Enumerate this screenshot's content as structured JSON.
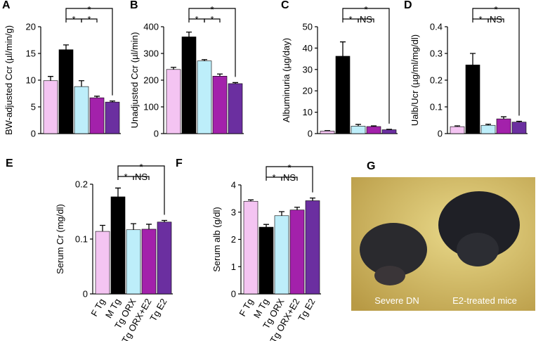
{
  "chart_data": [
    {
      "type": "bar",
      "label": "A",
      "y_label": "BW-adjusted Ccr (µl/min/g)",
      "ylim": [
        0,
        20
      ],
      "yticks": [
        0,
        5,
        10,
        15,
        20
      ],
      "values": [
        9.9,
        15.7,
        8.8,
        6.7,
        5.9
      ],
      "errors": [
        0.8,
        0.9,
        1.1,
        0.3,
        0.2
      ],
      "colors": [
        "#f4c4f2",
        "#000000",
        "#bdeefa",
        "#a321ab",
        "#6b2fa0"
      ],
      "annotations": [
        "*",
        "*",
        "*"
      ]
    },
    {
      "type": "bar",
      "label": "B",
      "y_label": "Unadjusted Ccr (µl/min)",
      "ylim": [
        0,
        400
      ],
      "yticks": [
        0,
        100,
        200,
        300,
        400
      ],
      "values": [
        240,
        362,
        272,
        215,
        187
      ],
      "errors": [
        8,
        18,
        5,
        8,
        4
      ],
      "colors": [
        "#f4c4f2",
        "#000000",
        "#bdeefa",
        "#a321ab",
        "#6b2fa0"
      ],
      "annotations": [
        "*",
        "*",
        "*"
      ]
    },
    {
      "type": "bar",
      "label": "C",
      "y_label": "Albuminuria (µg/day)",
      "ylim": [
        0,
        50
      ],
      "yticks": [
        0,
        10,
        20,
        30,
        40,
        50
      ],
      "values": [
        1.2,
        36.2,
        3.5,
        3.3,
        1.8
      ],
      "errors": [
        0.2,
        6.7,
        0.8,
        0.3,
        0.2
      ],
      "colors": [
        "#f4c4f2",
        "#000000",
        "#bdeefa",
        "#a321ab",
        "#6b2fa0"
      ],
      "annotations": [
        "*",
        "*",
        "NS"
      ]
    },
    {
      "type": "bar",
      "label": "D",
      "y_label": "Ualb/Ucr (µg/ml/mg/dl)",
      "ylim": [
        0,
        0.4
      ],
      "yticks": [
        0,
        0.1,
        0.2,
        0.3,
        0.4
      ],
      "values": [
        0.026,
        0.257,
        0.031,
        0.055,
        0.043
      ],
      "errors": [
        0.003,
        0.043,
        0.004,
        0.008,
        0.003
      ],
      "colors": [
        "#f4c4f2",
        "#000000",
        "#bdeefa",
        "#a321ab",
        "#6b2fa0"
      ],
      "annotations": [
        "*",
        "*",
        "NS"
      ]
    },
    {
      "type": "bar",
      "label": "E",
      "y_label": "Serum Cr (mg/dl)",
      "ylim": [
        0,
        0.2
      ],
      "yticks": [
        0,
        0.1,
        0.2
      ],
      "categories": [
        "F Tg",
        "M Tg",
        "Tg ORX",
        "Tg ORX+E2",
        "Tg E2"
      ],
      "values": [
        0.114,
        0.177,
        0.117,
        0.118,
        0.131
      ],
      "errors": [
        0.011,
        0.016,
        0.011,
        0.009,
        0.003
      ],
      "colors": [
        "#f4c4f2",
        "#000000",
        "#bdeefa",
        "#a321ab",
        "#6b2fa0"
      ],
      "annotations": [
        "*",
        "*",
        "NS"
      ]
    },
    {
      "type": "bar",
      "label": "F",
      "y_label": "Serum alb (g/dl)",
      "ylim": [
        0,
        4
      ],
      "yticks": [
        0,
        1,
        2,
        3,
        4
      ],
      "categories": [
        "F Tg",
        "M Tg",
        "Tg ORX",
        "Tg ORX+E2",
        "Tg E2"
      ],
      "values": [
        3.4,
        2.45,
        2.87,
        3.08,
        3.42
      ],
      "errors": [
        0.05,
        0.1,
        0.15,
        0.1,
        0.1
      ],
      "colors": [
        "#f4c4f2",
        "#000000",
        "#bdeefa",
        "#a321ab",
        "#6b2fa0"
      ],
      "annotations": [
        "*",
        "*",
        "NS"
      ]
    }
  ],
  "photo": {
    "label": "G",
    "captions": [
      "Severe DN",
      "E2-treated mice"
    ]
  }
}
